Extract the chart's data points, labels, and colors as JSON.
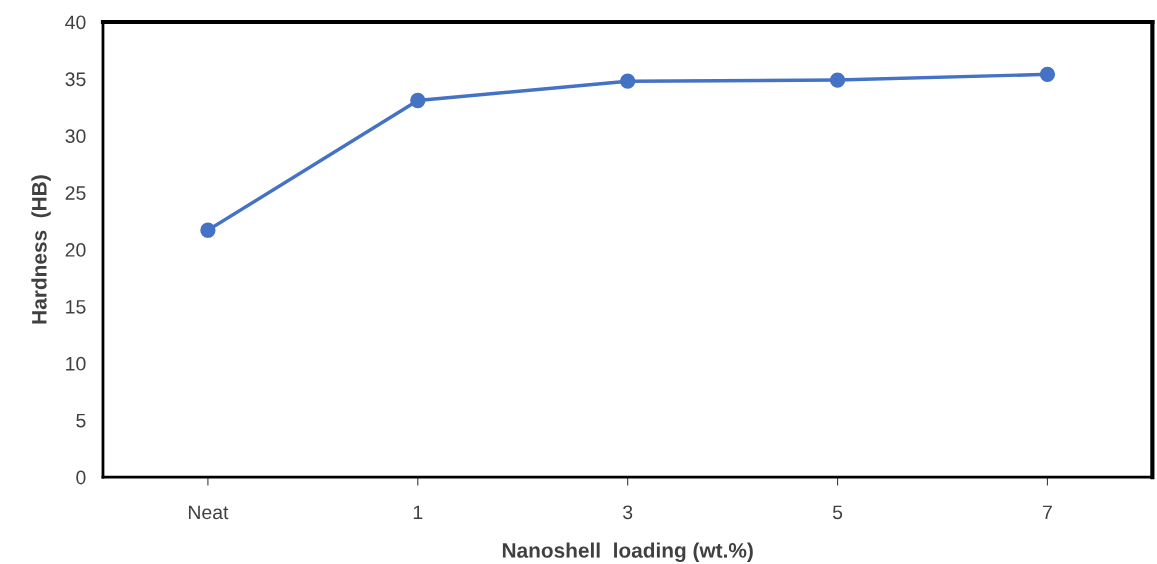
{
  "chart_data": {
    "type": "line",
    "xlabel": "Nanoshell  loading (wt.%)",
    "ylabel": "Hardness  (HB)",
    "categories": [
      "Neat",
      "1",
      "3",
      "5",
      "7"
    ],
    "series": [
      {
        "color": "#4472c4",
        "values": [
          21.7,
          33.1,
          34.8,
          34.9,
          35.4
        ]
      }
    ],
    "ylim": [
      0,
      40
    ],
    "yticks": [
      0,
      5,
      10,
      15,
      20,
      25,
      30,
      35,
      40
    ],
    "grid": false,
    "marker": "circle",
    "line_style": "solid"
  }
}
